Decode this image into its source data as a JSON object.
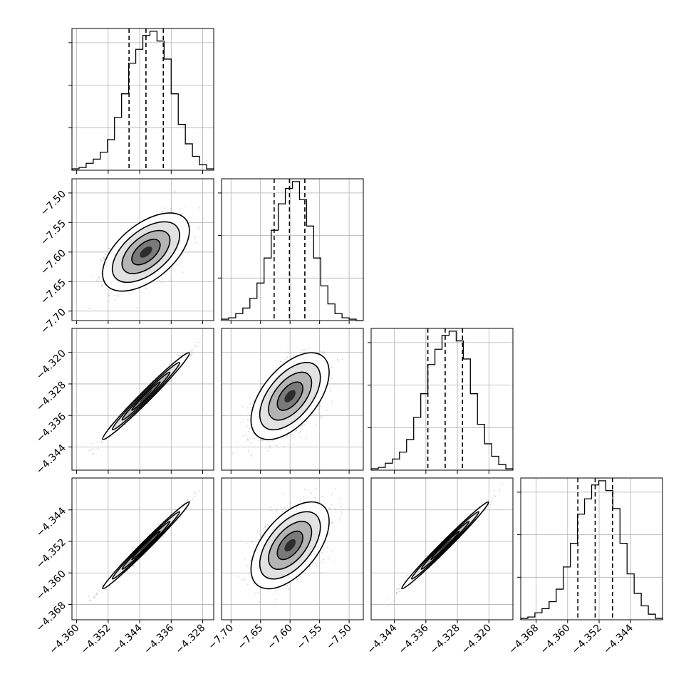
{
  "chart_data": [
    {
      "type": "histogram",
      "panel": "diag-0",
      "bins": [
        -4.3612,
        -4.3594,
        -4.3576,
        -4.3558,
        -4.354,
        -4.3522,
        -4.3504,
        -4.3486,
        -4.3468,
        -4.345,
        -4.3432,
        -4.3414,
        -4.3396,
        -4.3378,
        -4.336,
        -4.3342,
        -4.3324,
        -4.3306,
        -4.3288,
        -4.327,
        -4.3252
      ],
      "counts": [
        0.01,
        0.02,
        0.05,
        0.08,
        0.13,
        0.22,
        0.38,
        0.55,
        0.77,
        0.87,
        0.97,
        1.0,
        0.93,
        0.8,
        0.55,
        0.33,
        0.19,
        0.1,
        0.04,
        0.01
      ],
      "quantiles": [
        -4.3467,
        -4.3424,
        -4.338
      ],
      "xlim": [
        -4.3612,
        -4.3252
      ],
      "ylim": [
        0,
        1.0
      ]
    },
    {
      "type": "histogram",
      "panel": "diag-1",
      "bins": [
        -7.716,
        -7.704,
        -7.692,
        -7.68,
        -7.668,
        -7.656,
        -7.644,
        -7.632,
        -7.62,
        -7.608,
        -7.596,
        -7.584,
        -7.572,
        -7.56,
        -7.548,
        -7.536,
        -7.524,
        -7.512,
        -7.5,
        -7.488,
        -7.476
      ],
      "counts": [
        0.01,
        0.02,
        0.05,
        0.09,
        0.16,
        0.27,
        0.45,
        0.65,
        0.84,
        0.95,
        1.0,
        0.87,
        0.68,
        0.45,
        0.25,
        0.12,
        0.05,
        0.02,
        0.01,
        0.0
      ],
      "quantiles": [
        -7.627,
        -7.601,
        -7.575
      ],
      "xlim": [
        -7.716,
        -7.476
      ],
      "ylim": [
        0,
        1.0
      ]
    },
    {
      "type": "histogram",
      "panel": "diag-2",
      "bins": [
        -4.3499,
        -4.3481,
        -4.3463,
        -4.3445,
        -4.3427,
        -4.3409,
        -4.3391,
        -4.3373,
        -4.3355,
        -4.3337,
        -4.3319,
        -4.3301,
        -4.3283,
        -4.3265,
        -4.3247,
        -4.3229,
        -4.3211,
        -4.3193,
        -4.3175,
        -4.3157,
        -4.3139
      ],
      "counts": [
        0.01,
        0.02,
        0.05,
        0.08,
        0.13,
        0.22,
        0.38,
        0.55,
        0.76,
        0.87,
        0.97,
        1.0,
        0.93,
        0.8,
        0.55,
        0.33,
        0.19,
        0.1,
        0.04,
        0.01
      ],
      "quantiles": [
        -4.3355,
        -4.3311,
        -4.3267
      ],
      "xlim": [
        -4.3499,
        -4.3139
      ],
      "ylim": [
        0,
        1.0
      ]
    },
    {
      "type": "histogram",
      "panel": "diag-3",
      "bins": [
        -4.3719,
        -4.3701,
        -4.3683,
        -4.3665,
        -4.3647,
        -4.3629,
        -4.3611,
        -4.3593,
        -4.3575,
        -4.3557,
        -4.3539,
        -4.3521,
        -4.3503,
        -4.3485,
        -4.3467,
        -4.3449,
        -4.3431,
        -4.3413,
        -4.3395,
        -4.3377,
        -4.3359
      ],
      "counts": [
        0.01,
        0.02,
        0.05,
        0.08,
        0.13,
        0.22,
        0.38,
        0.55,
        0.76,
        0.87,
        0.97,
        1.0,
        0.93,
        0.8,
        0.55,
        0.33,
        0.19,
        0.1,
        0.04,
        0.01
      ],
      "quantiles": [
        -4.3574,
        -4.353,
        -4.3486
      ],
      "xlim": [
        -4.3719,
        -4.3359
      ],
      "ylim": [
        0,
        1.0
      ]
    },
    {
      "type": "scatter-contour",
      "panel": "1-0",
      "mean": [
        -4.3424,
        -7.6
      ],
      "sd": [
        0.0045,
        0.027
      ],
      "rho": 0.55,
      "xlim": [
        -4.3612,
        -4.3252
      ],
      "ylim": [
        -7.716,
        -7.476
      ]
    },
    {
      "type": "scatter-contour",
      "panel": "2-0",
      "mean": [
        -4.3424,
        -4.3311
      ],
      "sd": [
        0.0045,
        0.0045
      ],
      "rho": 0.985,
      "xlim": [
        -4.3612,
        -4.3252
      ],
      "ylim": [
        -4.3499,
        -4.3139
      ]
    },
    {
      "type": "scatter-contour",
      "panel": "2-1",
      "mean": [
        -7.6,
        -4.3311
      ],
      "sd": [
        0.027,
        0.0045
      ],
      "rho": 0.55,
      "xlim": [
        -7.716,
        -7.476
      ],
      "ylim": [
        -4.3499,
        -4.3139
      ]
    },
    {
      "type": "scatter-contour",
      "panel": "3-0",
      "mean": [
        -4.3424,
        -4.353
      ],
      "sd": [
        0.0045,
        0.0045
      ],
      "rho": 0.99,
      "xlim": [
        -4.3612,
        -4.3252
      ],
      "ylim": [
        -4.3719,
        -4.3359
      ]
    },
    {
      "type": "scatter-contour",
      "panel": "3-1",
      "mean": [
        -7.6,
        -4.353
      ],
      "sd": [
        0.027,
        0.0045
      ],
      "rho": 0.55,
      "xlim": [
        -7.716,
        -7.476
      ],
      "ylim": [
        -4.3719,
        -4.3359
      ]
    },
    {
      "type": "scatter-contour",
      "panel": "3-2",
      "mean": [
        -4.3311,
        -4.353
      ],
      "sd": [
        0.0045,
        0.0045
      ],
      "rho": 0.99,
      "xlim": [
        -4.3499,
        -4.3139
      ],
      "ylim": [
        -4.3719,
        -4.3359
      ]
    }
  ],
  "axes": {
    "dims": [
      {
        "lim": [
          -4.3612,
          -4.3252
        ],
        "ticks": [
          -4.36,
          -4.352,
          -4.344,
          -4.336,
          -4.328
        ],
        "tick_labels": [
          "−4.360",
          "−4.352",
          "−4.344",
          "−4.336",
          "−4.328"
        ]
      },
      {
        "lim": [
          -7.716,
          -7.476
        ],
        "ticks": [
          -7.7,
          -7.65,
          -7.6,
          -7.55,
          -7.5
        ],
        "tick_labels": [
          "−7.70",
          "−7.65",
          "−7.60",
          "−7.55",
          "−7.50"
        ]
      },
      {
        "lim": [
          -4.3499,
          -4.3139
        ],
        "ticks": [
          -4.344,
          -4.336,
          -4.328,
          -4.32
        ],
        "tick_labels": [
          "−4.344",
          "−4.336",
          "−4.328",
          "−4.320"
        ]
      },
      {
        "lim": [
          -4.3719,
          -4.3359
        ],
        "ticks": [
          -4.368,
          -4.36,
          -4.352,
          -4.344
        ],
        "tick_labels": [
          "−4.368",
          "−4.360",
          "−4.352",
          "−4.344"
        ]
      }
    ],
    "row_tick_labels": [
      [],
      [
        "−7.50",
        "−7.55",
        "−7.60",
        "−7.65",
        "−7.70"
      ],
      [
        "−4.320",
        "−4.328",
        "−4.336",
        "−4.344"
      ],
      [
        "−4.344",
        "−4.352",
        "−4.360",
        "−4.368"
      ]
    ],
    "col_tick_labels": [
      [
        "−4.360",
        "−4.352",
        "−4.344",
        "−4.336",
        "−4.328"
      ],
      [
        "−7.70",
        "−7.65",
        "−7.60",
        "−7.55",
        "−7.50"
      ],
      [
        "−4.344",
        "−4.336",
        "−4.328",
        "−4.320"
      ],
      [
        "−4.368",
        "−4.360",
        "−4.352",
        "−4.344"
      ]
    ]
  },
  "style": {
    "frame_color": "#000000",
    "grid_color": "#b0b0b0",
    "point_color": "#808080",
    "line_color": "#000000"
  }
}
